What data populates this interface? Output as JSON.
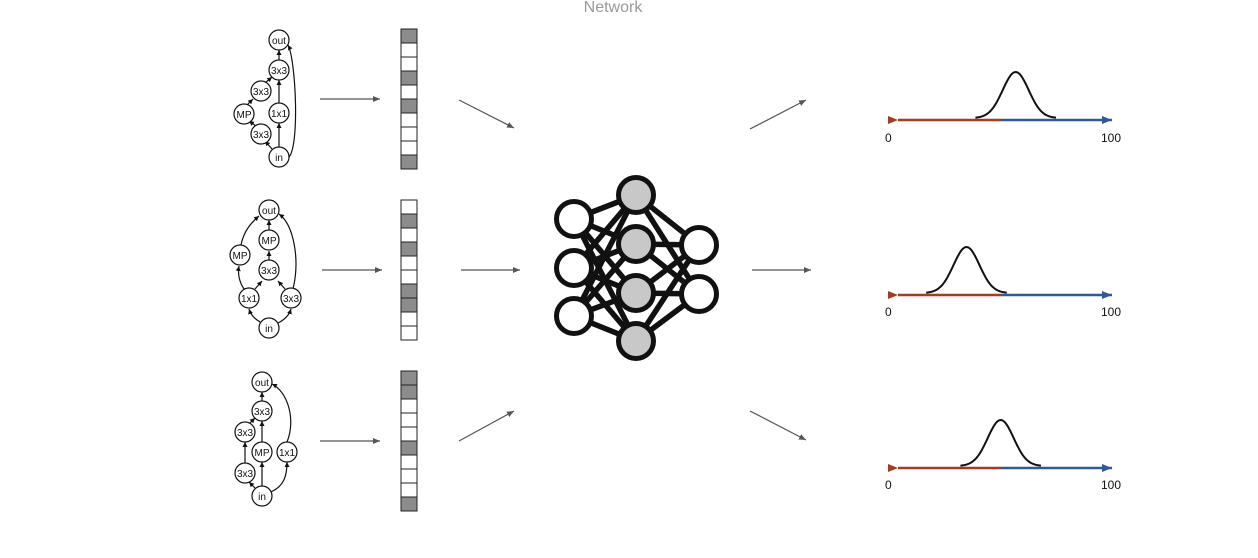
{
  "title": "Network",
  "colors": {
    "cell_filled": "#8c8c8c",
    "cell_empty": "#ffffff",
    "neuron_hidden": "#c8c8c8",
    "neuron_io": "#ffffff",
    "arrow": "#555555",
    "axis_left": "#a83a24",
    "axis_right": "#2f5a9a",
    "curve": "#111111"
  },
  "architectures": [
    {
      "nodes": {
        "out": "out",
        "c1": "3x3",
        "c2": "3x3",
        "mp": "MP",
        "c3": "1x1",
        "c4": "3x3",
        "inp": "in"
      },
      "encoding": [
        1,
        0,
        0,
        1,
        0,
        1,
        0,
        0,
        0,
        1
      ]
    },
    {
      "nodes": {
        "out": "out",
        "mp1": "MP",
        "mp2": "MP",
        "c1": "3x3",
        "c2": "1x1",
        "c3": "3x3",
        "inp": "in"
      },
      "encoding": [
        0,
        1,
        0,
        1,
        0,
        0,
        1,
        1,
        0,
        0
      ]
    },
    {
      "nodes": {
        "out": "out",
        "c1": "3x3",
        "c2": "3x3",
        "mp": "MP",
        "c3": "1x1",
        "c4": "3x3",
        "inp": "in"
      },
      "encoding": [
        1,
        1,
        0,
        0,
        0,
        1,
        0,
        0,
        0,
        1
      ]
    }
  ],
  "distributions": [
    {
      "axis_min": "0",
      "axis_max": "100",
      "peak": 0.55
    },
    {
      "axis_min": "0",
      "axis_max": "100",
      "peak": 0.32
    },
    {
      "axis_min": "0",
      "axis_max": "100",
      "peak": 0.48
    }
  ]
}
